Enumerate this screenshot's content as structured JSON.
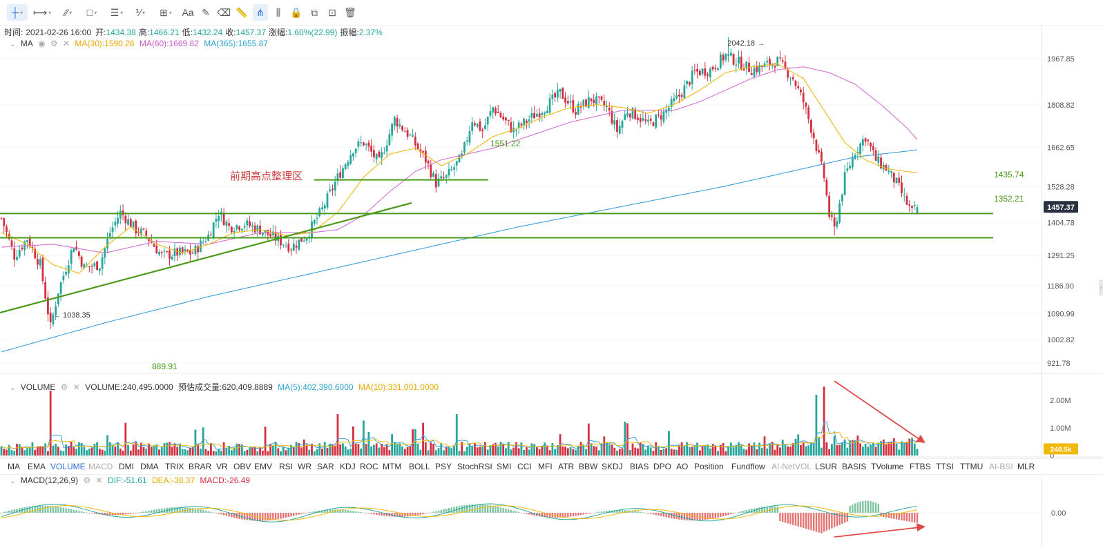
{
  "toolbar": {
    "tools": [
      {
        "icon": "crosshair-icon",
        "glyph": "┼",
        "caret": true,
        "active": true
      },
      {
        "icon": "horizontal-ray-icon",
        "glyph": "⟼",
        "caret": true
      },
      {
        "icon": "trend-line-icon",
        "glyph": "⁄⁄",
        "caret": true
      },
      {
        "icon": "rectangle-icon",
        "glyph": "□",
        "caret": true
      },
      {
        "icon": "parallel-lines-icon",
        "glyph": "☰",
        "caret": true
      },
      {
        "icon": "fibonacci-icon",
        "glyph": "⅟",
        "caret": true
      },
      {
        "icon": "measure-icon",
        "glyph": "⊞",
        "caret": true
      },
      {
        "icon": "text-icon",
        "glyph": "Aa",
        "caret": false
      },
      {
        "icon": "brush-icon",
        "glyph": "✎",
        "caret": false
      },
      {
        "icon": "eraser-icon",
        "glyph": "⌫",
        "caret": false
      },
      {
        "icon": "ruler-icon",
        "glyph": "📏",
        "caret": false
      },
      {
        "icon": "magnet-icon",
        "glyph": "⋔",
        "caret": false,
        "active": true
      },
      {
        "icon": "candles-icon",
        "glyph": "⫼",
        "caret": false
      },
      {
        "icon": "lock-icon",
        "glyph": "🔒",
        "caret": false
      },
      {
        "icon": "copy-icon",
        "glyph": "⧉",
        "caret": false
      },
      {
        "icon": "screenshot-icon",
        "glyph": "⊡",
        "caret": false
      },
      {
        "icon": "trash-icon",
        "glyph": "🗑",
        "caret": false
      }
    ]
  },
  "ohlc": {
    "time_label": "时间:",
    "time": "2021-02-26 16:00",
    "open_label": "开:",
    "open": "1434.38",
    "high_label": "高:",
    "high": "1466.21",
    "low_label": "低:",
    "low": "1432.24",
    "close_label": "收:",
    "close": "1457.37",
    "chg_label": "涨幅:",
    "chg": "1.60%(22.99)",
    "amp_label": "振幅:",
    "amp": "2.37%"
  },
  "ma_legend": {
    "name": "MA",
    "ma30": "MA(30):1590.28",
    "ma60": "MA(60):1669.82",
    "ma365": "MA(365):1655.87"
  },
  "volume_legend": {
    "name": "VOLUME",
    "vol": "VOLUME:240,495.0000",
    "est": "预估成交量:620,409.8889",
    "ma5": "MA(5):402,390.6000",
    "ma10": "MA(10):331,001.0000"
  },
  "macd_legend": {
    "name": "MACD(12,26,9)",
    "dif": "DIF:-51.61",
    "dea": "DEA:-38.37",
    "macd": "MACD:-26.49"
  },
  "indicators": [
    "MA",
    "EMA",
    "VOLUME",
    "MACD",
    "DMI",
    "DMA",
    "TRIX",
    "BRAR",
    "VR",
    "OBV",
    "EMV",
    "RSI",
    "WR",
    "SAR",
    "KDJ",
    "ROC",
    "MTM",
    "BOLL",
    "PSY",
    "StochRSI",
    "SMI",
    "CCI",
    "MFI",
    "ATR",
    "BBW",
    "SKDJ",
    "BIAS",
    "DPO",
    "AO",
    "Position",
    "Fundflow",
    "AI-NetVOL",
    "LSUR",
    "BASIS",
    "TVolume",
    "FTBS",
    "TTSI",
    "TTMU",
    "AI-BSI",
    "MLR"
  ],
  "indicator_active": [
    "VOLUME"
  ],
  "indicator_dim": [
    "MACD",
    "AI-NetVOL",
    "AI-BSI"
  ],
  "colors": {
    "up": "#26a69a",
    "down": "#d32f3f",
    "ma30": "#f0b90b",
    "ma60": "#d16fd1",
    "ma365": "#3aa0d8",
    "level": "#4a9a1a",
    "annotation": "#d04040",
    "arrow": "#e04848"
  },
  "chart_data": [
    {
      "type": "candlestick",
      "name": "price",
      "y_axis_ticks": [
        1967.85,
        1808.82,
        1662.65,
        1528.28,
        1404.78,
        1291.25,
        1186.9,
        1090.99,
        1002.82,
        921.78
      ],
      "ylim": [
        895,
        2090
      ],
      "current_price": "1457.37",
      "annotations": [
        {
          "text": "2042.18",
          "kind": "high-marker"
        },
        {
          "text": "1038.35",
          "kind": "low-marker"
        },
        {
          "text": "1551.22",
          "kind": "level"
        },
        {
          "text": "1435.74",
          "kind": "level"
        },
        {
          "text": "1352.21",
          "kind": "level"
        },
        {
          "text": "889.91",
          "kind": "label"
        },
        {
          "text": "前期高点整理区",
          "kind": "note"
        }
      ],
      "horizontal_levels": [
        1551.22,
        1435.74,
        1352.21
      ],
      "close_path": [
        [
          0,
          1420
        ],
        [
          5,
          1290
        ],
        [
          10,
          1350
        ],
        [
          15,
          1260
        ],
        [
          19,
          1045
        ],
        [
          22,
          1170
        ],
        [
          28,
          1330
        ],
        [
          32,
          1250
        ],
        [
          38,
          1260
        ],
        [
          42,
          1370
        ],
        [
          46,
          1440
        ],
        [
          52,
          1380
        ],
        [
          56,
          1360
        ],
        [
          62,
          1290
        ],
        [
          68,
          1300
        ],
        [
          74,
          1300
        ],
        [
          80,
          1360
        ],
        [
          84,
          1440
        ],
        [
          88,
          1390
        ],
        [
          94,
          1400
        ],
        [
          100,
          1380
        ],
        [
          106,
          1350
        ],
        [
          112,
          1320
        ],
        [
          118,
          1360
        ],
        [
          124,
          1450
        ],
        [
          130,
          1560
        ],
        [
          136,
          1660
        ],
        [
          140,
          1680
        ],
        [
          146,
          1610
        ],
        [
          152,
          1760
        ],
        [
          158,
          1700
        ],
        [
          164,
          1620
        ],
        [
          168,
          1540
        ],
        [
          172,
          1560
        ],
        [
          178,
          1630
        ],
        [
          182,
          1760
        ],
        [
          186,
          1720
        ],
        [
          190,
          1800
        ],
        [
          194,
          1760
        ],
        [
          198,
          1720
        ],
        [
          204,
          1760
        ],
        [
          210,
          1800
        ],
        [
          216,
          1850
        ],
        [
          222,
          1790
        ],
        [
          228,
          1830
        ],
        [
          234,
          1800
        ],
        [
          238,
          1720
        ],
        [
          242,
          1790
        ],
        [
          246,
          1770
        ],
        [
          250,
          1740
        ],
        [
          256,
          1780
        ],
        [
          262,
          1840
        ],
        [
          268,
          1920
        ],
        [
          274,
          1930
        ],
        [
          280,
          1980
        ],
        [
          284,
          1960
        ],
        [
          290,
          1930
        ],
        [
          294,
          1940
        ],
        [
          300,
          1960
        ],
        [
          306,
          1900
        ],
        [
          310,
          1820
        ],
        [
          314,
          1700
        ],
        [
          318,
          1560
        ],
        [
          320,
          1430
        ],
        [
          322,
          1380
        ],
        [
          326,
          1560
        ],
        [
          330,
          1650
        ],
        [
          334,
          1700
        ],
        [
          338,
          1620
        ],
        [
          342,
          1590
        ],
        [
          346,
          1540
        ],
        [
          350,
          1470
        ],
        [
          352,
          1440
        ],
        [
          354,
          1457
        ]
      ],
      "ma30_path": [
        [
          0,
          1370
        ],
        [
          10,
          1330
        ],
        [
          20,
          1260
        ],
        [
          30,
          1230
        ],
        [
          40,
          1320
        ],
        [
          50,
          1390
        ],
        [
          60,
          1330
        ],
        [
          70,
          1300
        ],
        [
          80,
          1330
        ],
        [
          90,
          1370
        ],
        [
          100,
          1380
        ],
        [
          110,
          1360
        ],
        [
          120,
          1370
        ],
        [
          130,
          1440
        ],
        [
          140,
          1560
        ],
        [
          150,
          1640
        ],
        [
          160,
          1660
        ],
        [
          170,
          1600
        ],
        [
          180,
          1640
        ],
        [
          190,
          1700
        ],
        [
          200,
          1730
        ],
        [
          210,
          1770
        ],
        [
          220,
          1800
        ],
        [
          230,
          1810
        ],
        [
          240,
          1800
        ],
        [
          250,
          1780
        ],
        [
          260,
          1810
        ],
        [
          270,
          1860
        ],
        [
          280,
          1920
        ],
        [
          290,
          1940
        ],
        [
          300,
          1950
        ],
        [
          310,
          1900
        ],
        [
          318,
          1790
        ],
        [
          326,
          1680
        ],
        [
          334,
          1620
        ],
        [
          342,
          1590
        ],
        [
          350,
          1580
        ],
        [
          354,
          1575
        ]
      ],
      "ma60_path": [
        [
          0,
          1320
        ],
        [
          20,
          1330
        ],
        [
          40,
          1300
        ],
        [
          60,
          1340
        ],
        [
          80,
          1330
        ],
        [
          100,
          1370
        ],
        [
          120,
          1370
        ],
        [
          130,
          1380
        ],
        [
          140,
          1430
        ],
        [
          150,
          1510
        ],
        [
          160,
          1580
        ],
        [
          170,
          1620
        ],
        [
          180,
          1640
        ],
        [
          190,
          1660
        ],
        [
          200,
          1690
        ],
        [
          210,
          1720
        ],
        [
          220,
          1750
        ],
        [
          230,
          1770
        ],
        [
          240,
          1790
        ],
        [
          250,
          1790
        ],
        [
          260,
          1790
        ],
        [
          270,
          1820
        ],
        [
          280,
          1860
        ],
        [
          290,
          1900
        ],
        [
          300,
          1930
        ],
        [
          310,
          1940
        ],
        [
          320,
          1920
        ],
        [
          330,
          1880
        ],
        [
          340,
          1810
        ],
        [
          350,
          1730
        ],
        [
          354,
          1690
        ]
      ],
      "ma365_path": [
        [
          0,
          960
        ],
        [
          40,
          1060
        ],
        [
          80,
          1150
        ],
        [
          120,
          1230
        ],
        [
          160,
          1310
        ],
        [
          200,
          1390
        ],
        [
          240,
          1460
        ],
        [
          280,
          1530
        ],
        [
          310,
          1590
        ],
        [
          330,
          1630
        ],
        [
          350,
          1650
        ],
        [
          354,
          1655
        ]
      ]
    },
    {
      "type": "bar",
      "name": "volume",
      "y_axis_ticks": [
        "2.00M",
        "1.00M",
        "0"
      ],
      "ylim": [
        0,
        2500000
      ],
      "current_value_tag": "240.5k",
      "notable_spikes": [
        [
          19,
          2350000
        ],
        [
          130,
          1500000
        ],
        [
          176,
          1500000
        ],
        [
          315,
          2200000
        ],
        [
          318,
          2500000
        ]
      ]
    },
    {
      "type": "bar",
      "name": "macd",
      "y_axis_ticks": [
        "0.00"
      ],
      "ylim": [
        -120,
        120
      ]
    }
  ]
}
